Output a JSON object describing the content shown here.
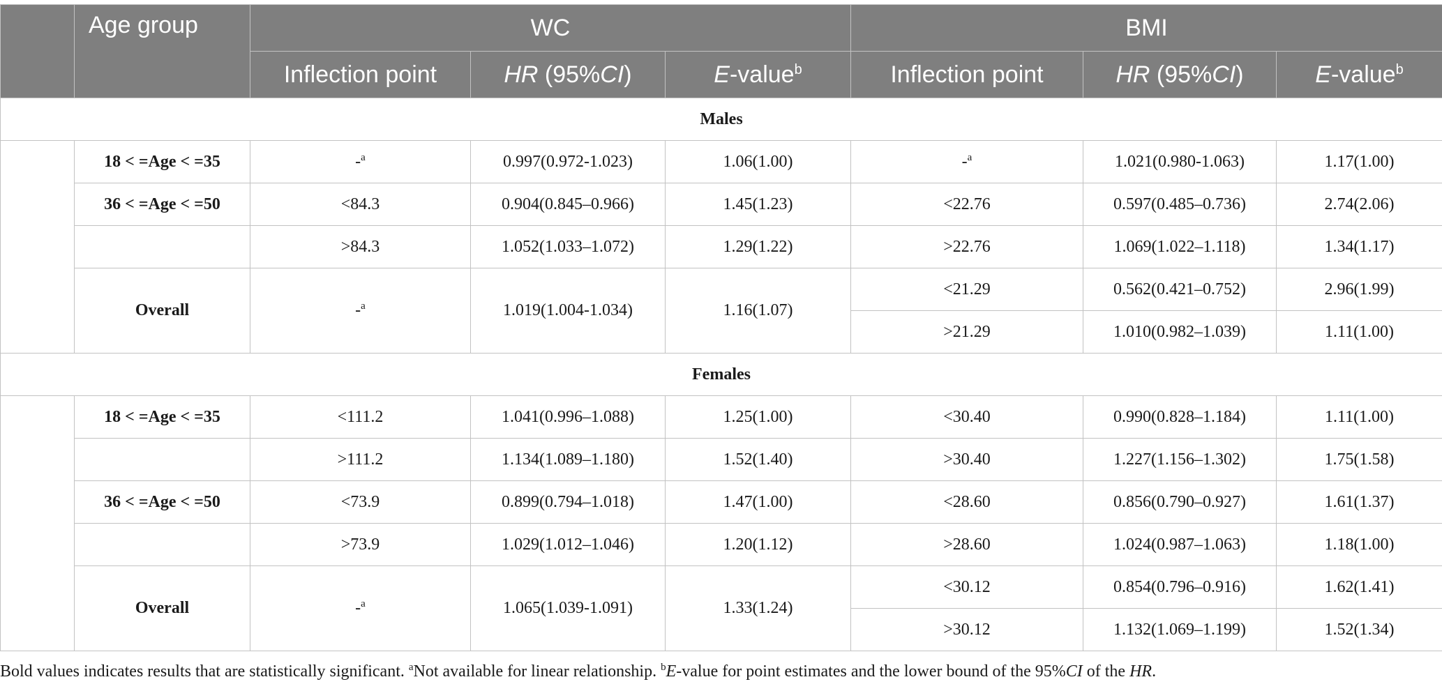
{
  "table": {
    "headers": {
      "age_group": "Age group",
      "wc": "WC",
      "bmi": "BMI",
      "inflection_point": "Inflection point",
      "hr_prefix": "HR",
      "hr_ci_open": " (95%",
      "hr_ci": "CI",
      "hr_ci_close": ")",
      "evalue_e": "E",
      "evalue_rest": "-value",
      "evalue_sup": "b"
    },
    "note_sup": "a",
    "groups": {
      "males": {
        "label": "Males",
        "rows": [
          {
            "age": "18 < =Age < =35",
            "wc_ip": "-",
            "wc_ip_sup": "a",
            "wc_hr": "0.997(0.972-1.023)",
            "wc_e": "1.06(1.00)",
            "bmi_ip": "-",
            "bmi_ip_sup": "a",
            "bmi_hr": "1.021(0.980-1.063)",
            "bmi_e": "1.17(1.00)"
          },
          {
            "age": "36 < =Age < =50",
            "wc_ip": "<84.3",
            "wc_hr": "0.904(0.845–0.966)",
            "wc_e": "1.45(1.23)",
            "bmi_ip": "<22.76",
            "bmi_hr": "0.597(0.485–0.736)",
            "bmi_e": "2.74(2.06)"
          },
          {
            "age": "",
            "wc_ip": ">84.3",
            "wc_hr": "1.052(1.033–1.072)",
            "wc_e": "1.29(1.22)",
            "bmi_ip": ">22.76",
            "bmi_hr": "1.069(1.022–1.118)",
            "bmi_e": "1.34(1.17)"
          },
          {
            "age": "Overall",
            "wc_ip": "-",
            "wc_ip_sup": "a",
            "wc_hr": "1.019(1.004-1.034)",
            "wc_e": "1.16(1.07)",
            "bmi_ip": "<21.29",
            "bmi_hr": "0.562(0.421–0.752)",
            "bmi_e": "2.96(1.99)"
          },
          {
            "bmi_ip": ">21.29",
            "bmi_hr": "1.010(0.982–1.039)",
            "bmi_e": "1.11(1.00)"
          }
        ]
      },
      "females": {
        "label": "Females",
        "rows": [
          {
            "age": "18 < =Age < =35",
            "wc_ip": "<111.2",
            "wc_hr": "1.041(0.996–1.088)",
            "wc_e": "1.25(1.00)",
            "bmi_ip": "<30.40",
            "bmi_hr": "0.990(0.828–1.184)",
            "bmi_e": "1.11(1.00)"
          },
          {
            "age": "",
            "wc_ip": ">111.2",
            "wc_hr": "1.134(1.089–1.180)",
            "wc_e": "1.52(1.40)",
            "bmi_ip": ">30.40",
            "bmi_hr": "1.227(1.156–1.302)",
            "bmi_e": "1.75(1.58)"
          },
          {
            "age": "36 < =Age < =50",
            "wc_ip": "<73.9",
            "wc_hr": "0.899(0.794–1.018)",
            "wc_e": "1.47(1.00)",
            "bmi_ip": "<28.60",
            "bmi_hr": "0.856(0.790–0.927)",
            "bmi_e": "1.61(1.37)"
          },
          {
            "age": "",
            "wc_ip": ">73.9",
            "wc_hr": "1.029(1.012–1.046)",
            "wc_e": "1.20(1.12)",
            "bmi_ip": ">28.60",
            "bmi_hr": "1.024(0.987–1.063)",
            "bmi_e": "1.18(1.00)"
          },
          {
            "age": "Overall",
            "wc_ip": "-",
            "wc_ip_sup": "a",
            "wc_hr": "1.065(1.039-1.091)",
            "wc_e": "1.33(1.24)",
            "bmi_ip": "<30.12",
            "bmi_hr": "0.854(0.796–0.916)",
            "bmi_e": "1.62(1.41)"
          },
          {
            "bmi_ip": ">30.12",
            "bmi_hr": "1.132(1.069–1.199)",
            "bmi_e": "1.52(1.34)"
          }
        ]
      }
    }
  },
  "footnote": {
    "part1": "Bold values indicates results that are statistically significant. ",
    "sup_a": "a",
    "part2": "Not available for linear relationship. ",
    "sup_b": "b",
    "part3_e": "E",
    "part3": "-value for point estimates and the lower bound of the 95%",
    "part3_ci": "CI",
    "part3_end": " of the ",
    "part3_hr": "HR",
    "part3_period": "."
  }
}
